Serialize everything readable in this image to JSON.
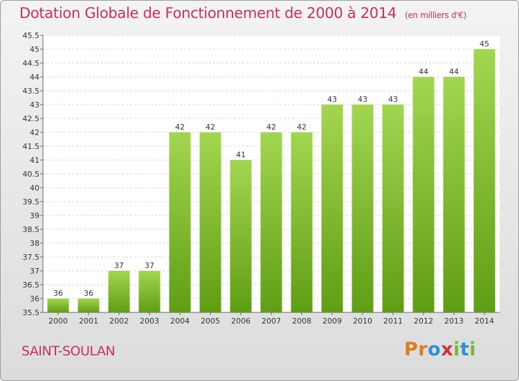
{
  "chart_data": {
    "type": "bar",
    "title": "Dotation Globale de Fonctionnement de 2000 à 2014",
    "unit_note": "(en milliers d'€)",
    "categories": [
      "2000",
      "2001",
      "2002",
      "2003",
      "2004",
      "2005",
      "2006",
      "2007",
      "2008",
      "2009",
      "2010",
      "2011",
      "2012",
      "2013",
      "2014"
    ],
    "values": [
      36,
      36,
      37,
      37,
      42,
      42,
      41,
      42,
      42,
      43,
      43,
      43,
      44,
      44,
      45
    ],
    "ylim": [
      35.5,
      45.5
    ],
    "yticks": [
      "35.5",
      "36",
      "36.5",
      "37",
      "37.5",
      "38",
      "38.5",
      "39",
      "39.5",
      "40",
      "40.5",
      "41",
      "41.5",
      "42",
      "42.5",
      "43",
      "43.5",
      "44",
      "44.5",
      "45",
      "45.5"
    ],
    "xlabel": "",
    "ylabel": "",
    "grid": true,
    "bar_color": "#7fbf2a"
  },
  "footer": {
    "town": "SAINT-SOULAN",
    "brand": "Proxiti"
  },
  "colors": {
    "title": "#c8325a",
    "brand_letters": [
      "#e07a1f",
      "#e07a1f",
      "#2f8fd6",
      "#d1313c",
      "#7cb82f",
      "#2f8fd6",
      "#7cb82f"
    ]
  }
}
